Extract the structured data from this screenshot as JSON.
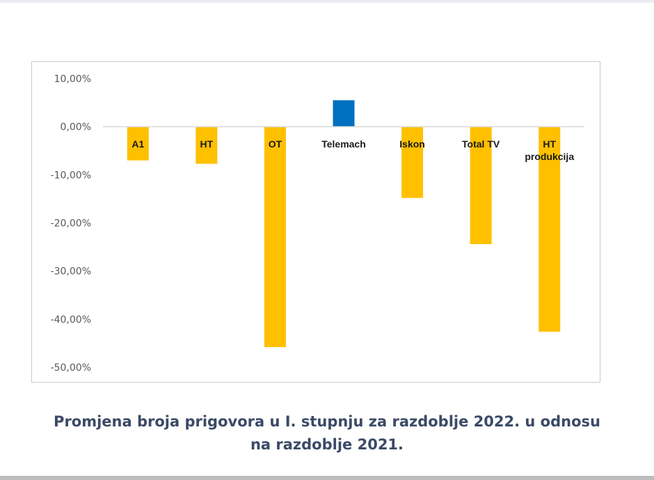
{
  "chart_data": {
    "type": "bar",
    "title": "",
    "xlabel": "",
    "ylabel": "",
    "ylim": [
      -50,
      10
    ],
    "y_ticks": [
      "10,00%",
      "0,00%",
      "-10,00%",
      "-20,00%",
      "-30,00%",
      "-40,00%",
      "-50,00%"
    ],
    "y_tick_values": [
      10,
      0,
      -10,
      -20,
      -30,
      -40,
      -50
    ],
    "grid": false,
    "categories": [
      "A1",
      "HT",
      "OT",
      "Telemach",
      "Iskon",
      "Total TV",
      "HT produkcija"
    ],
    "category_lines": [
      [
        "A1"
      ],
      [
        "HT"
      ],
      [
        "OT"
      ],
      [
        "Telemach"
      ],
      [
        "Iskon"
      ],
      [
        "Total TV"
      ],
      [
        "HT",
        "produkcija"
      ]
    ],
    "values": [
      -7.0,
      -7.7,
      -45.8,
      5.5,
      -14.8,
      -24.4,
      -42.6
    ],
    "colors": {
      "negative": "#ffc000",
      "positive": "#0070c0",
      "axis": "#d9d9d9",
      "tick_text": "#595959",
      "category_text": "#1a1a1a"
    }
  },
  "caption": {
    "line1": "Promjena broja prigovora u I. stupnju za razdoblje 2022. u odnosu",
    "line2": "na razdoblje 2021."
  }
}
